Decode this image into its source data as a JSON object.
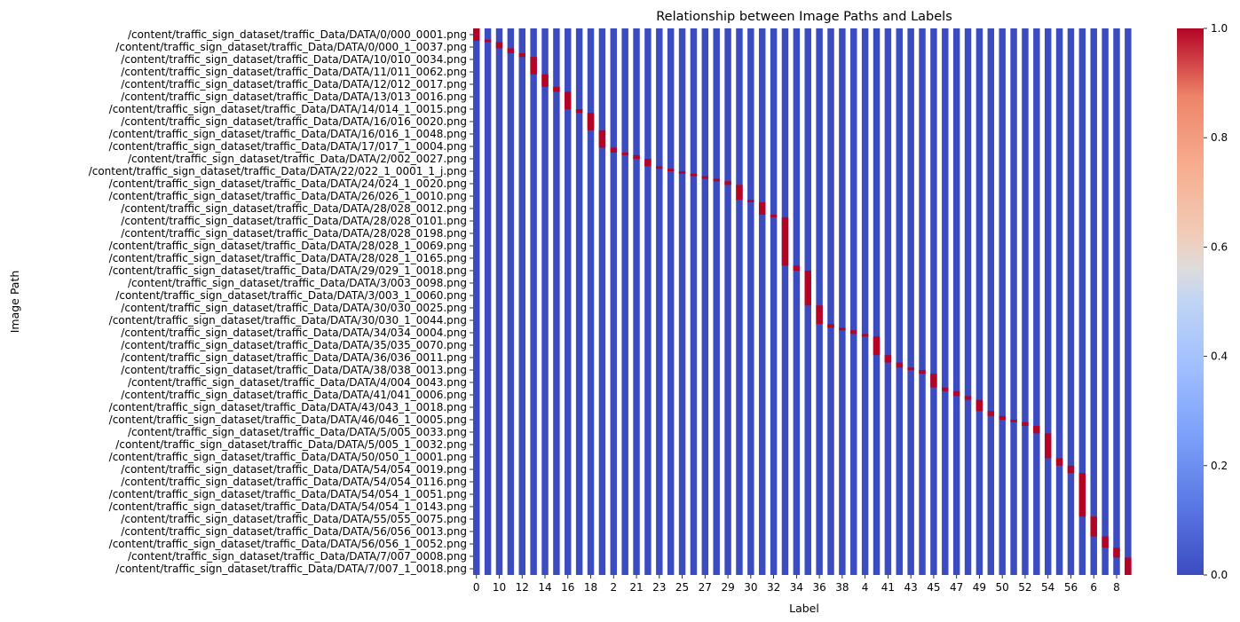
{
  "chart_data": {
    "type": "heatmap",
    "title": "Relationship between Image Paths and Labels",
    "xlabel": "Label",
    "ylabel": "Image Path",
    "colormap": "coolwarm",
    "color_low": "#3b4cc0",
    "color_high": "#b40426",
    "value_range": [
      0,
      1
    ],
    "colorbar_ticks": [
      "0.0",
      "0.2",
      "0.4",
      "0.6",
      "0.8",
      "1.0"
    ],
    "colorbar_tick_values": [
      0,
      0.2,
      0.4,
      0.6,
      0.8,
      1.0
    ],
    "num_columns": 58,
    "x_tick_labels": [
      "0",
      "10",
      "12",
      "14",
      "16",
      "18",
      "2",
      "21",
      "23",
      "25",
      "27",
      "29",
      "30",
      "32",
      "34",
      "36",
      "38",
      "4",
      "41",
      "43",
      "45",
      "47",
      "49",
      "50",
      "52",
      "54",
      "56",
      "6",
      "8"
    ],
    "y_tick_labels": [
      "/content/traffic_sign_dataset/traffic_Data/DATA/0/000_0001.png",
      "/content/traffic_sign_dataset/traffic_Data/DATA/0/000_1_0037.png",
      "/content/traffic_sign_dataset/traffic_Data/DATA/10/010_0034.png",
      "/content/traffic_sign_dataset/traffic_Data/DATA/11/011_0062.png",
      "/content/traffic_sign_dataset/traffic_Data/DATA/12/012_0017.png",
      "/content/traffic_sign_dataset/traffic_Data/DATA/13/013_0016.png",
      "/content/traffic_sign_dataset/traffic_Data/DATA/14/014_1_0015.png",
      "/content/traffic_sign_dataset/traffic_Data/DATA/16/016_0020.png",
      "/content/traffic_sign_dataset/traffic_Data/DATA/16/016_1_0048.png",
      "/content/traffic_sign_dataset/traffic_Data/DATA/17/017_1_0004.png",
      "/content/traffic_sign_dataset/traffic_Data/DATA/2/002_0027.png",
      "/content/traffic_sign_dataset/traffic_Data/DATA/22/022_1_0001_1_j.png",
      "/content/traffic_sign_dataset/traffic_Data/DATA/24/024_1_0020.png",
      "/content/traffic_sign_dataset/traffic_Data/DATA/26/026_1_0010.png",
      "/content/traffic_sign_dataset/traffic_Data/DATA/28/028_0012.png",
      "/content/traffic_sign_dataset/traffic_Data/DATA/28/028_0101.png",
      "/content/traffic_sign_dataset/traffic_Data/DATA/28/028_0198.png",
      "/content/traffic_sign_dataset/traffic_Data/DATA/28/028_1_0069.png",
      "/content/traffic_sign_dataset/traffic_Data/DATA/28/028_1_0165.png",
      "/content/traffic_sign_dataset/traffic_Data/DATA/29/029_1_0018.png",
      "/content/traffic_sign_dataset/traffic_Data/DATA/3/003_0098.png",
      "/content/traffic_sign_dataset/traffic_Data/DATA/3/003_1_0060.png",
      "/content/traffic_sign_dataset/traffic_Data/DATA/30/030_0025.png",
      "/content/traffic_sign_dataset/traffic_Data/DATA/30/030_1_0044.png",
      "/content/traffic_sign_dataset/traffic_Data/DATA/34/034_0004.png",
      "/content/traffic_sign_dataset/traffic_Data/DATA/35/035_0070.png",
      "/content/traffic_sign_dataset/traffic_Data/DATA/36/036_0011.png",
      "/content/traffic_sign_dataset/traffic_Data/DATA/38/038_0013.png",
      "/content/traffic_sign_dataset/traffic_Data/DATA/4/004_0043.png",
      "/content/traffic_sign_dataset/traffic_Data/DATA/41/041_0006.png",
      "/content/traffic_sign_dataset/traffic_Data/DATA/43/043_1_0018.png",
      "/content/traffic_sign_dataset/traffic_Data/DATA/46/046_1_0005.png",
      "/content/traffic_sign_dataset/traffic_Data/DATA/5/005_0033.png",
      "/content/traffic_sign_dataset/traffic_Data/DATA/5/005_1_0032.png",
      "/content/traffic_sign_dataset/traffic_Data/DATA/50/050_1_0001.png",
      "/content/traffic_sign_dataset/traffic_Data/DATA/54/054_0019.png",
      "/content/traffic_sign_dataset/traffic_Data/DATA/54/054_0116.png",
      "/content/traffic_sign_dataset/traffic_Data/DATA/54/054_1_0051.png",
      "/content/traffic_sign_dataset/traffic_Data/DATA/54/054_1_0143.png",
      "/content/traffic_sign_dataset/traffic_Data/DATA/55/055_0075.png",
      "/content/traffic_sign_dataset/traffic_Data/DATA/56/056_0013.png",
      "/content/traffic_sign_dataset/traffic_Data/DATA/56/056_1_0052.png",
      "/content/traffic_sign_dataset/traffic_Data/DATA/7/007_0008.png",
      "/content/traffic_sign_dataset/traffic_Data/DATA/7/007_1_0018.png"
    ],
    "hot_segments": [
      {
        "col": 0,
        "start": 0.0,
        "end": 1.0
      },
      {
        "col": 1,
        "start": 0.9,
        "end": 1.1
      },
      {
        "col": 2,
        "start": 1.1,
        "end": 1.6
      },
      {
        "col": 3,
        "start": 1.6,
        "end": 2.0
      },
      {
        "col": 4,
        "start": 2.0,
        "end": 2.3
      },
      {
        "col": 5,
        "start": 2.3,
        "end": 3.7
      },
      {
        "col": 6,
        "start": 3.7,
        "end": 4.7
      },
      {
        "col": 7,
        "start": 4.7,
        "end": 5.1
      },
      {
        "col": 8,
        "start": 5.1,
        "end": 6.5
      },
      {
        "col": 9,
        "start": 6.5,
        "end": 6.8
      },
      {
        "col": 10,
        "start": 6.8,
        "end": 8.2
      },
      {
        "col": 11,
        "start": 8.2,
        "end": 9.6
      },
      {
        "col": 12,
        "start": 9.6,
        "end": 10.0
      },
      {
        "col": 13,
        "start": 10.0,
        "end": 10.2
      },
      {
        "col": 14,
        "start": 10.2,
        "end": 10.5
      },
      {
        "col": 15,
        "start": 10.5,
        "end": 11.1
      },
      {
        "col": 16,
        "start": 11.1,
        "end": 11.3
      },
      {
        "col": 17,
        "start": 11.3,
        "end": 11.5
      },
      {
        "col": 18,
        "start": 11.5,
        "end": 11.7
      },
      {
        "col": 19,
        "start": 11.7,
        "end": 11.9
      },
      {
        "col": 20,
        "start": 11.9,
        "end": 12.1
      },
      {
        "col": 21,
        "start": 12.1,
        "end": 12.3
      },
      {
        "col": 22,
        "start": 12.3,
        "end": 12.6
      },
      {
        "col": 23,
        "start": 12.6,
        "end": 13.8
      },
      {
        "col": 24,
        "start": 13.8,
        "end": 14.0
      },
      {
        "col": 25,
        "start": 14.0,
        "end": 15.0
      },
      {
        "col": 26,
        "start": 15.0,
        "end": 15.2
      },
      {
        "col": 27,
        "start": 15.2,
        "end": 19.1
      },
      {
        "col": 28,
        "start": 19.1,
        "end": 19.5
      },
      {
        "col": 29,
        "start": 19.5,
        "end": 22.3
      },
      {
        "col": 30,
        "start": 22.3,
        "end": 23.8
      },
      {
        "col": 31,
        "start": 23.8,
        "end": 24.1
      },
      {
        "col": 32,
        "start": 24.1,
        "end": 24.3
      },
      {
        "col": 33,
        "start": 24.3,
        "end": 24.6
      },
      {
        "col": 34,
        "start": 24.6,
        "end": 24.8
      },
      {
        "col": 35,
        "start": 24.8,
        "end": 26.3
      },
      {
        "col": 36,
        "start": 26.3,
        "end": 26.9
      },
      {
        "col": 37,
        "start": 26.9,
        "end": 27.3
      },
      {
        "col": 38,
        "start": 27.3,
        "end": 27.5
      },
      {
        "col": 39,
        "start": 27.5,
        "end": 27.8
      },
      {
        "col": 40,
        "start": 27.8,
        "end": 28.9
      },
      {
        "col": 41,
        "start": 28.9,
        "end": 29.2
      },
      {
        "col": 42,
        "start": 29.2,
        "end": 29.6
      },
      {
        "col": 43,
        "start": 29.6,
        "end": 29.9
      },
      {
        "col": 44,
        "start": 29.9,
        "end": 30.8
      },
      {
        "col": 45,
        "start": 30.8,
        "end": 31.2
      },
      {
        "col": 46,
        "start": 31.2,
        "end": 31.5
      },
      {
        "col": 47,
        "start": 31.5,
        "end": 31.7
      },
      {
        "col": 48,
        "start": 31.7,
        "end": 32.0
      },
      {
        "col": 49,
        "start": 32.0,
        "end": 32.6
      },
      {
        "col": 50,
        "start": 32.6,
        "end": 34.6
      },
      {
        "col": 51,
        "start": 34.6,
        "end": 35.2
      },
      {
        "col": 52,
        "start": 35.2,
        "end": 35.8
      },
      {
        "col": 53,
        "start": 35.8,
        "end": 39.3
      },
      {
        "col": 54,
        "start": 39.3,
        "end": 40.9
      },
      {
        "col": 55,
        "start": 40.9,
        "end": 41.8
      },
      {
        "col": 56,
        "start": 41.8,
        "end": 42.6
      },
      {
        "col": 57,
        "start": 42.6,
        "end": 44.0
      }
    ]
  }
}
